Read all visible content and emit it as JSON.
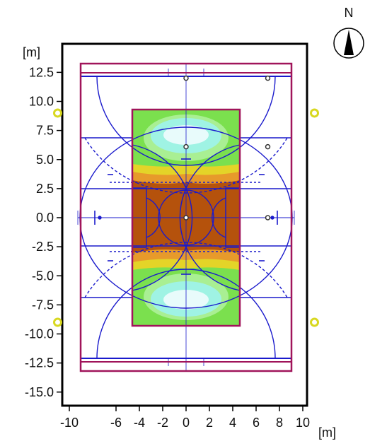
{
  "title": "",
  "axes": {
    "x_unit": "[m]",
    "y_unit": "[m]",
    "x_ticks": [
      "-10",
      "-6",
      "-4",
      "-2",
      "0",
      "2",
      "4",
      "6",
      "8",
      "10"
    ],
    "y_ticks": [
      "12.5",
      "10.0",
      "7.5",
      "5.0",
      "2.5",
      "0.0",
      "-2.5",
      "-5.0",
      "-7.5",
      "-10.0",
      "-12.5",
      "-15.0"
    ]
  },
  "compass": {
    "label": "N",
    "icon": "north-arrow-icon"
  },
  "colors": {
    "frame": "#000000",
    "outer_rect": "#a0145a",
    "court_lines": "#1a1acc",
    "iso_brown": "#b5520c",
    "iso_orange": "#e79a2b",
    "iso_yellow": "#e4d428",
    "iso_green": "#7be04e",
    "iso_lightgreen": "#a9ef93",
    "iso_cyan": "#9ff3e4",
    "iso_white": "#e8fbfb",
    "luminaire": "#d8d820"
  },
  "luminaires": [
    {
      "x": -11,
      "y": 9.0
    },
    {
      "x": 11,
      "y": 9.0
    },
    {
      "x": -11,
      "y": -9.0
    },
    {
      "x": 11,
      "y": -9.0
    }
  ],
  "measurement_points": [
    {
      "x": 0,
      "y": 12.0
    },
    {
      "x": 7,
      "y": 12.0
    },
    {
      "x": 0,
      "y": 6.1
    },
    {
      "x": 7,
      "y": 6.1
    },
    {
      "x": 0,
      "y": 0.0
    },
    {
      "x": 7,
      "y": 0.0
    }
  ]
}
